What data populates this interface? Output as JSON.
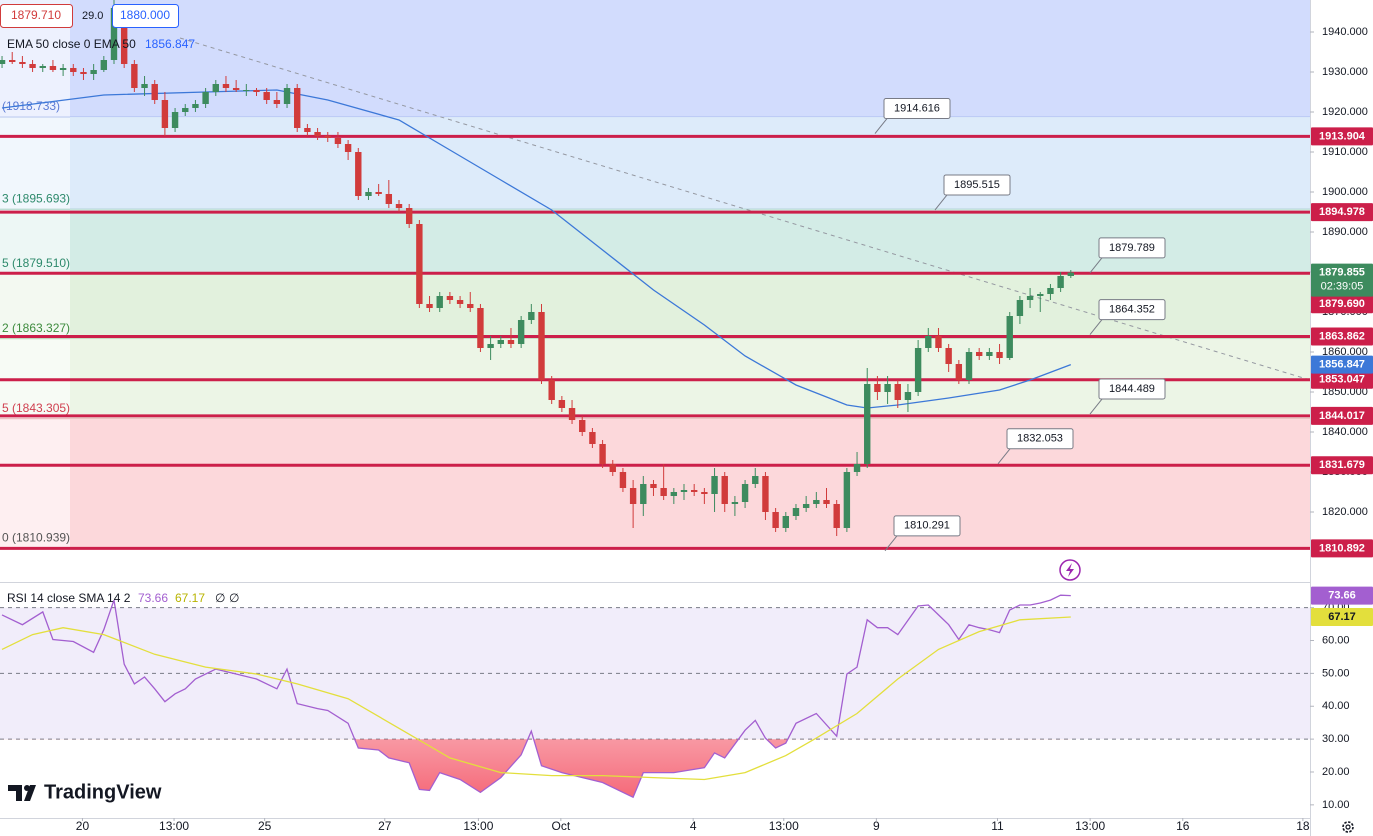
{
  "header": {
    "bid": "1879.710",
    "spread": "29.0",
    "ask": "1880.000"
  },
  "logo": "TradingView",
  "chart_data": [
    {
      "type": "candlestick",
      "legend": "EMA 50 close 0 EMA 50",
      "up_color": "#3d8b5e",
      "down_color": "#d13b3b",
      "open": [
        1932,
        1933,
        1932.5,
        1932,
        1931,
        1931.5,
        1930.5,
        1931,
        1930,
        1929.5,
        1930.5,
        1933,
        1945,
        1932,
        1926,
        1927,
        1923,
        1916,
        1920,
        1921,
        1922,
        1925,
        1927,
        1926,
        1925.5,
        1925.5,
        1925,
        1923,
        1922,
        1926,
        1916,
        1915,
        1914,
        1913.5,
        1912,
        1910,
        1899,
        1900,
        1899.5,
        1897,
        1896,
        1892,
        1872,
        1871,
        1874,
        1873,
        1872,
        1871,
        1861,
        1862,
        1863,
        1862,
        1868,
        1870,
        1853,
        1848,
        1846,
        1843,
        1840,
        1837,
        1832,
        1830,
        1826,
        1822,
        1827,
        1826,
        1824,
        1825,
        1825.5,
        1825,
        1824.5,
        1829,
        1822,
        1822.5,
        1827,
        1829,
        1820,
        1816,
        1819,
        1821,
        1822,
        1823,
        1822,
        1816,
        1830,
        1832,
        1852,
        1850,
        1852,
        1848,
        1850,
        1861,
        1864,
        1861,
        1857,
        1853,
        1860,
        1859,
        1860,
        1858.5,
        1869,
        1873,
        1874,
        1874.5,
        1876,
        1879
      ],
      "high": [
        1934,
        1935,
        1934,
        1933,
        1932,
        1933,
        1932,
        1932,
        1931,
        1932,
        1934,
        1948,
        1947,
        1933,
        1929,
        1928,
        1925,
        1921,
        1922,
        1923,
        1926,
        1928,
        1929,
        1928,
        1927,
        1926,
        1926,
        1925,
        1927,
        1927,
        1917,
        1916,
        1915,
        1915,
        1913,
        1911,
        1901,
        1902,
        1903,
        1898,
        1897,
        1893,
        1874,
        1875,
        1875,
        1874,
        1875,
        1872,
        1864,
        1864,
        1866,
        1869,
        1872,
        1872,
        1854,
        1849,
        1848,
        1844,
        1841,
        1838,
        1833,
        1831,
        1828,
        1829,
        1828,
        1832,
        1826,
        1827,
        1827,
        1826,
        1831,
        1830,
        1824,
        1828,
        1831,
        1830,
        1821,
        1820,
        1822,
        1824,
        1825,
        1826,
        1823,
        1831,
        1835,
        1856,
        1854,
        1854,
        1853,
        1852,
        1863,
        1866,
        1866,
        1862,
        1858,
        1861,
        1861,
        1861,
        1862,
        1870,
        1874,
        1876,
        1875,
        1877,
        1880,
        1880.5
      ],
      "low": [
        1931,
        1932,
        1931,
        1930,
        1930,
        1930,
        1929,
        1929,
        1928,
        1928,
        1930,
        1932,
        1931,
        1925,
        1924,
        1922,
        1914,
        1915,
        1919,
        1920,
        1921,
        1924,
        1925,
        1925,
        1924,
        1924,
        1922,
        1921,
        1921,
        1915,
        1914,
        1913,
        1912.5,
        1911,
        1908,
        1898,
        1898,
        1899,
        1896,
        1895,
        1891,
        1871,
        1870,
        1870,
        1872,
        1871,
        1870,
        1860,
        1858,
        1861,
        1861,
        1861,
        1867,
        1852,
        1847,
        1845,
        1842,
        1839,
        1836,
        1831,
        1829,
        1825,
        1816,
        1819,
        1824,
        1823,
        1822,
        1823,
        1824,
        1822,
        1820,
        1820,
        1819,
        1821,
        1826,
        1818,
        1815,
        1815,
        1818,
        1820,
        1821,
        1821,
        1814,
        1815,
        1829,
        1831,
        1848,
        1847,
        1846,
        1845,
        1849,
        1860,
        1860,
        1855,
        1852,
        1852,
        1858,
        1858,
        1857,
        1858,
        1867,
        1871,
        1870,
        1873,
        1875,
        1878.5
      ],
      "close": [
        1933,
        1932.5,
        1932,
        1931,
        1931.5,
        1930.5,
        1931,
        1930,
        1929.5,
        1930.5,
        1933,
        1946,
        1932,
        1926,
        1927,
        1923,
        1916,
        1920,
        1921,
        1922,
        1925,
        1927,
        1926,
        1925.5,
        1925.5,
        1925,
        1923,
        1922,
        1926,
        1916,
        1915,
        1914,
        1913.5,
        1912,
        1910,
        1899,
        1900,
        1899.5,
        1897,
        1896,
        1892,
        1872,
        1871,
        1874,
        1873,
        1872,
        1871,
        1861,
        1862,
        1863,
        1862,
        1868,
        1870,
        1853,
        1848,
        1846,
        1843,
        1840,
        1837,
        1832,
        1830,
        1826,
        1822,
        1827,
        1826,
        1824,
        1825,
        1825.5,
        1825,
        1824.5,
        1829,
        1822,
        1822.5,
        1827,
        1829,
        1820,
        1816,
        1819,
        1821,
        1822,
        1823,
        1822,
        1816,
        1830,
        1832,
        1852,
        1850,
        1852,
        1848,
        1850,
        1861,
        1864,
        1861,
        1857,
        1853,
        1860,
        1859,
        1860,
        1858.5,
        1869,
        1873,
        1874,
        1874.5,
        1876,
        1879,
        1879.855
      ],
      "countdown": "02:39:05",
      "series": [
        {
          "color": "#3c78d8",
          "x": [
            0,
            10,
            20,
            27,
            32,
            39,
            44,
            49,
            54,
            59,
            64,
            69,
            73,
            78,
            83,
            85,
            88,
            93,
            98,
            101,
            105
          ],
          "values": [
            1921,
            1924.25,
            1925,
            1925.5,
            1923,
            1918,
            1910.5,
            1903,
            1895.5,
            1885.5,
            1875.5,
            1866.75,
            1859,
            1851.75,
            1846.75,
            1846,
            1846.75,
            1848.5,
            1850.5,
            1853,
            1856.847
          ]
        }
      ],
      "xlim": [
        -0.2,
        128.5
      ],
      "xticks": [
        {
          "value": 7.9,
          "label": "20"
        },
        {
          "value": 16.9,
          "label": "13:00"
        },
        {
          "value": 25.8,
          "label": "25"
        },
        {
          "value": 37.6,
          "label": "27"
        },
        {
          "value": 46.8,
          "label": "13:00"
        },
        {
          "value": 54.9,
          "label": "Oct"
        },
        {
          "value": 67.9,
          "label": "4"
        },
        {
          "value": 76.8,
          "label": "13:00"
        },
        {
          "value": 85.9,
          "label": "9"
        },
        {
          "value": 97.8,
          "label": "11"
        },
        {
          "value": 106.9,
          "label": "13:00"
        },
        {
          "value": 116,
          "label": "16"
        },
        {
          "value": 127.8,
          "label": "18"
        }
      ],
      "ylim": [
        1802.5,
        1948
      ],
      "yticks": [
        {
          "value": 1820,
          "label": "1820.000"
        },
        {
          "value": 1830,
          "label": "1830.000"
        },
        {
          "value": 1840,
          "label": "1840.000"
        },
        {
          "value": 1850,
          "label": "1850.000"
        },
        {
          "value": 1860,
          "label": "1860.000"
        },
        {
          "value": 1870,
          "label": "1870.000"
        },
        {
          "value": 1880,
          "label": "1880.000"
        },
        {
          "value": 1890,
          "label": "1890.000"
        },
        {
          "value": 1900,
          "label": "1900.000"
        },
        {
          "value": 1910,
          "label": "1910.000"
        },
        {
          "value": 1920,
          "label": "1920.000"
        },
        {
          "value": 1930,
          "label": "1930.000"
        },
        {
          "value": 1940,
          "label": "1940.000"
        }
      ],
      "fib_levels": [
        {
          "value": 1918.733,
          "label": "(1918.733)",
          "color": "#d2dcfd",
          "text_color": "#5b7bd5"
        },
        {
          "value": 1895.693,
          "label": "3 (1895.693)",
          "color": "#ddebfa",
          "text_color": "#2e8a6c"
        },
        {
          "value": 1879.51,
          "label": "5 (1879.510)",
          "color": "#d3ece6",
          "text_color": "#2e8a6c"
        },
        {
          "value": 1863.327,
          "label": "2 (1863.327)",
          "color": "#e2f1dd",
          "text_color": "#3d8b3d"
        },
        {
          "value": 1843.305,
          "label": "5 (1843.305)",
          "color": "#ecf5e6",
          "text_color": "#d04050"
        },
        {
          "value": 1810.939,
          "label": "0 (1810.939)",
          "color": "#fcd8db",
          "text_color": "#555555"
        }
      ],
      "level_color": "#cc1f4a",
      "levels": [
        1913.904,
        1894.978,
        {
          "value": 1879.69,
          "label": "1879.690"
        },
        1863.862,
        1853.047,
        1844.017,
        1831.679,
        1810.892
      ],
      "callouts": [
        1914.616,
        1895.515,
        1879.789,
        1864.352,
        1844.489,
        1832.053,
        1810.291
      ]
    },
    {
      "type": "line",
      "legend": "RSI 14 close SMA 14 2",
      "legend_extra": [
        "∅",
        "∅"
      ],
      "series": [
        {
          "color": "#a35fd0",
          "x": [
            0,
            2,
            4,
            5,
            7,
            9,
            10,
            11,
            12,
            13,
            14,
            15,
            16,
            17,
            18,
            19,
            21,
            23,
            25,
            27,
            28,
            29,
            31,
            32,
            34,
            35,
            37,
            38,
            40,
            41,
            42,
            43,
            45,
            47,
            49,
            51,
            52,
            53,
            55,
            59,
            62,
            63,
            66,
            69,
            70,
            71,
            73,
            74,
            75,
            76,
            77,
            78,
            80,
            82,
            83,
            84,
            85,
            86,
            87,
            88,
            90,
            91,
            92,
            93,
            94,
            95,
            96,
            97,
            98,
            99,
            100,
            101,
            102,
            103,
            104,
            105
          ],
          "values": [
            67.8,
            64.8,
            68.7,
            60.3,
            59.7,
            56.4,
            63.3,
            72.3,
            52.8,
            46.8,
            48.9,
            45.3,
            41.4,
            43.8,
            45.3,
            48.3,
            51.3,
            49.8,
            48.3,
            45.3,
            51.3,
            40.8,
            39.3,
            38.7,
            34.8,
            27.3,
            26.7,
            24.3,
            22.8,
            14.7,
            14.4,
            19.8,
            17.7,
            13.8,
            18.3,
            25.2,
            32.4,
            21.9,
            19.8,
            16.8,
            12.3,
            19.8,
            19.8,
            21.3,
            25.8,
            24.3,
            32.7,
            35.7,
            30.3,
            27.3,
            28.8,
            34.8,
            37.8,
            30.9,
            49.8,
            51.9,
            66.3,
            63.9,
            63.9,
            61.8,
            70.5,
            70.8,
            67.8,
            64.8,
            60.3,
            64.8,
            63.9,
            63.3,
            62.4,
            69.3,
            70.8,
            70.8,
            71.4,
            72.3,
            73.8,
            73.66
          ]
        },
        {
          "color": "#e3df3c",
          "x": [
            0,
            3,
            6,
            10,
            15,
            20,
            25,
            29,
            34,
            39,
            44,
            49,
            54,
            59,
            64,
            69,
            73,
            77,
            80,
            84,
            88,
            92,
            96,
            100,
            105
          ],
          "values": [
            57.3,
            61.8,
            63.9,
            61.8,
            55.8,
            51.9,
            49.8,
            46.8,
            42.3,
            33.3,
            24.3,
            19.8,
            18.9,
            18.9,
            18.3,
            17.7,
            19.8,
            25,
            30.3,
            37.8,
            48.3,
            57.3,
            62.7,
            66.3,
            67.17
          ]
        }
      ],
      "ylim": [
        6,
        77.5
      ],
      "yticks": [
        {
          "value": 10,
          "label": "10.00"
        },
        {
          "value": 20,
          "label": "20.00"
        },
        {
          "value": 30,
          "label": "30.00"
        },
        {
          "value": 40,
          "label": "40.00"
        },
        {
          "value": 50,
          "label": "50.00"
        },
        {
          "value": 60,
          "label": "60.00"
        },
        {
          "value": 70,
          "label": "70.00"
        }
      ],
      "levels": [
        70,
        50,
        30
      ],
      "band_color": "#f1edfa"
    }
  ]
}
